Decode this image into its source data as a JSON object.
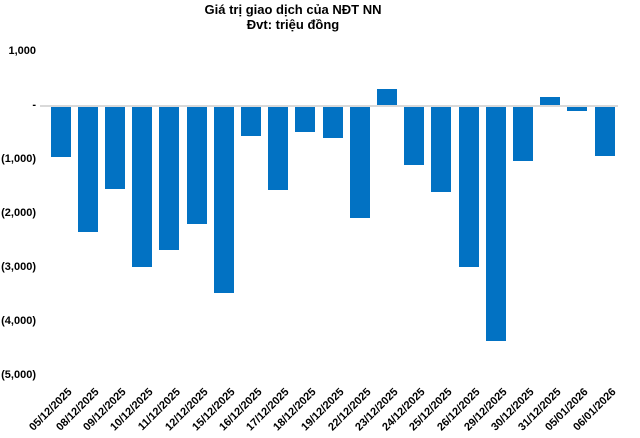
{
  "header": {
    "title": "Giá trị giao dịch của NĐT NN",
    "subtitle": "Đvt: triệu đồng"
  },
  "chart_data": {
    "type": "bar",
    "title": "Giá trị giao dịch của NĐT NN",
    "subtitle": "Đvt: triệu đồng",
    "unit": "triệu đồng",
    "categories": [
      "05/12/2025",
      "08/12/2025",
      "09/12/2025",
      "10/12/2025",
      "11/12/2025",
      "12/12/2025",
      "15/12/2025",
      "16/12/2025",
      "17/12/2025",
      "18/12/2025",
      "19/12/2025",
      "22/12/2025",
      "23/12/2025",
      "24/12/2025",
      "25/12/2025",
      "26/12/2025",
      "29/12/2025",
      "30/12/2025",
      "31/12/2025",
      "05/01/2026",
      "06/01/2026"
    ],
    "values": [
      -930,
      -2330,
      -1520,
      -2980,
      -2650,
      -2170,
      -3460,
      -540,
      -1540,
      -480,
      -590,
      -2070,
      300,
      -1080,
      -1590,
      -2980,
      -4350,
      -1000,
      140,
      -80,
      -920
    ],
    "xlabel": "",
    "ylabel": "",
    "ylim": [
      -5000,
      1000
    ],
    "ytick_values": [
      1000,
      0,
      -1000,
      -2000,
      -3000,
      -4000,
      -5000
    ],
    "ytick_labels": [
      "1,000",
      "-",
      "(1,000)",
      "(2,000)",
      "(3,000)",
      "(4,000)",
      "(5,000)"
    ],
    "grid": false,
    "legend": false,
    "bar_color": "#0272c3",
    "zero_line_color": "#d9d9d9",
    "text_color": "#000000"
  }
}
